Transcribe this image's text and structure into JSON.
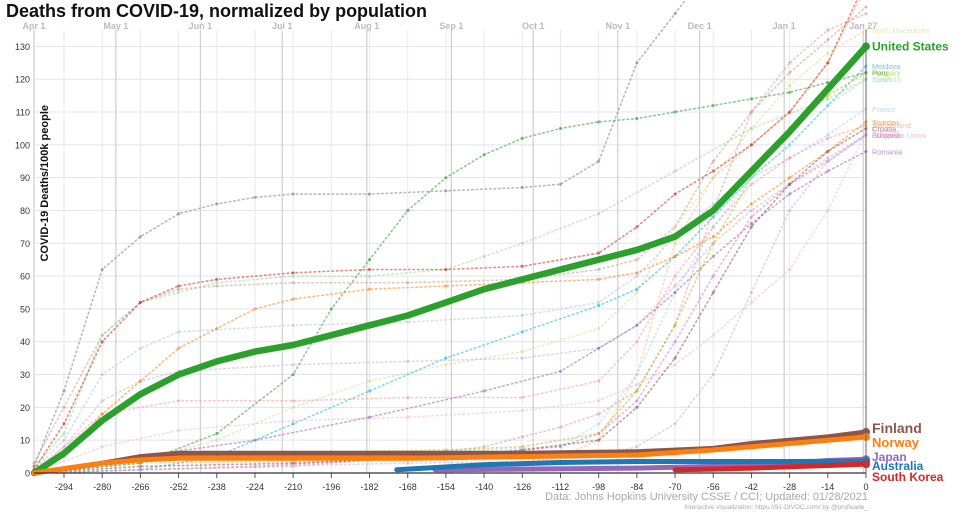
{
  "chart_data": {
    "type": "line",
    "title": "Deaths from COVID-19, normalized by population",
    "ylabel": "COVID-19 Deaths/100k people",
    "xlabel": "",
    "xlim": [
      -305,
      0
    ],
    "ylim": [
      0,
      135
    ],
    "x_ticks": [
      -294,
      -280,
      -266,
      -252,
      -238,
      -224,
      -210,
      -196,
      -182,
      -168,
      -154,
      -140,
      -126,
      -112,
      -98,
      -84,
      -70,
      -56,
      -42,
      -28,
      -14,
      0
    ],
    "y_ticks": [
      0,
      10,
      20,
      30,
      40,
      50,
      60,
      70,
      80,
      90,
      100,
      110,
      120,
      130
    ],
    "month_labels": [
      {
        "label": "Apr 1",
        "x": -305
      },
      {
        "label": "May 1",
        "x": -275
      },
      {
        "label": "Jun 1",
        "x": -244
      },
      {
        "label": "Jul 1",
        "x": -214
      },
      {
        "label": "Aug 1",
        "x": -183
      },
      {
        "label": "Sep 1",
        "x": -152
      },
      {
        "label": "Oct 1",
        "x": -122
      },
      {
        "label": "Nov 1",
        "x": -91
      },
      {
        "label": "Dec 1",
        "x": -61
      },
      {
        "label": "Jan 1",
        "x": -30
      },
      {
        "label": "Jan 27",
        "x": -1
      }
    ],
    "grid": true,
    "highlighted_series": [
      {
        "name": "United States",
        "color": "#2ca02c",
        "x": [
          -305,
          -294,
          -280,
          -266,
          -252,
          -238,
          -224,
          -210,
          -196,
          -182,
          -168,
          -154,
          -140,
          -126,
          -112,
          -98,
          -84,
          -70,
          -56,
          -42,
          -28,
          -14,
          0
        ],
        "y": [
          0,
          6,
          16,
          24,
          30,
          34,
          37,
          39,
          42,
          45,
          48,
          52,
          56,
          59,
          62,
          65,
          68,
          72,
          80,
          92,
          104,
          117,
          130
        ]
      },
      {
        "name": "Finland",
        "color": "#8c564b",
        "x": [
          -305,
          -280,
          -266,
          -252,
          -210,
          -168,
          -126,
          -84,
          -56,
          -42,
          -28,
          -14,
          0
        ],
        "y": [
          0,
          3,
          5,
          6,
          6,
          6,
          6,
          6.5,
          7.5,
          9,
          10,
          11,
          12.5
        ]
      },
      {
        "name": "Norway",
        "color": "#ff7f0e",
        "x": [
          -305,
          -280,
          -266,
          -252,
          -210,
          -168,
          -126,
          -84,
          -56,
          -42,
          -28,
          -14,
          0
        ],
        "y": [
          0,
          3,
          4,
          4.5,
          4.5,
          4.5,
          5,
          5.5,
          7,
          8,
          9,
          10,
          11
        ]
      },
      {
        "name": "Japan",
        "color": "#9467bd",
        "x": [
          -158,
          -126,
          -84,
          -56,
          -28,
          -14,
          0
        ],
        "y": [
          1,
          1.2,
          1.5,
          2,
          3,
          3.8,
          4.2
        ]
      },
      {
        "name": "Australia",
        "color": "#1f77b4",
        "x": [
          -172,
          -140,
          -112,
          -84,
          -56,
          -28,
          0
        ],
        "y": [
          1,
          2.5,
          3.2,
          3.5,
          3.5,
          3.5,
          3.6
        ]
      },
      {
        "name": "South Korea",
        "color": "#d62728",
        "x": [
          -70,
          -56,
          -42,
          -28,
          -14,
          0
        ],
        "y": [
          1,
          1.2,
          1.5,
          1.9,
          2.3,
          2.7
        ]
      }
    ],
    "faded_series": [
      {
        "name": "Czechia",
        "color": "#ffbb78",
        "x": [
          -305,
          -266,
          -210,
          -154,
          -112,
          -98,
          -84,
          -70,
          -56,
          -42,
          -28,
          -14,
          0
        ],
        "y": [
          0,
          3,
          3.5,
          4,
          5,
          10,
          30,
          70,
          90,
          100,
          110,
          125,
          148
        ]
      },
      {
        "name": "Italy",
        "color": "#c49c94",
        "x": [
          -305,
          -294,
          -280,
          -266,
          -252,
          -238,
          -210,
          -168,
          -126,
          -98,
          -84,
          -70,
          -56,
          -42,
          -28,
          -14,
          0
        ],
        "y": [
          3,
          20,
          42,
          52,
          56,
          57,
          58,
          58,
          59,
          62,
          65,
          75,
          95,
          110,
          122,
          132,
          142
        ]
      },
      {
        "name": "Bosnia and Herzegovina",
        "color": "#e7969c",
        "x": [
          -305,
          -266,
          -210,
          -168,
          -140,
          -126,
          -112,
          -98,
          -84,
          -70,
          -56,
          -42,
          -28,
          -14,
          0
        ],
        "y": [
          0,
          1,
          2,
          5,
          8,
          11,
          14,
          18,
          25,
          45,
          80,
          110,
          125,
          135,
          140
        ]
      },
      {
        "name": "North Macedonia",
        "color": "#dbdb8d",
        "x": [
          -305,
          -266,
          -238,
          -210,
          -182,
          -154,
          -126,
          -98,
          -84,
          -70,
          -56,
          -42,
          -28,
          -14,
          0
        ],
        "y": [
          0,
          4,
          10,
          20,
          28,
          33,
          37,
          44,
          55,
          75,
          90,
          105,
          118,
          128,
          135
        ]
      },
      {
        "name": "Moldova",
        "color": "#17becf",
        "x": [
          -305,
          -266,
          -238,
          -210,
          -182,
          -154,
          -126,
          -98,
          -84,
          -70,
          -56,
          -42,
          -28,
          -14,
          0
        ],
        "y": [
          0,
          1,
          5,
          15,
          25,
          35,
          43,
          51,
          56,
          66,
          78,
          90,
          100,
          112,
          124
        ]
      },
      {
        "name": "Hungary",
        "color": "#bcbd22",
        "x": [
          -305,
          -266,
          -238,
          -196,
          -154,
          -126,
          -98,
          -84,
          -70,
          -56,
          -42,
          -28,
          -14,
          0
        ],
        "y": [
          0,
          4,
          6,
          6.5,
          7,
          8,
          12,
          25,
          45,
          70,
          90,
          105,
          115,
          122
        ]
      },
      {
        "name": "Spain",
        "color": "#98df8a",
        "x": [
          -305,
          -294,
          -280,
          -266,
          -252,
          -238,
          -210,
          -182,
          -154,
          -140,
          -126,
          -98,
          -70,
          -42,
          -14,
          0
        ],
        "y": [
          2,
          12,
          42,
          52,
          55,
          58,
          60,
          60,
          62,
          66,
          70,
          79,
          92,
          105,
          114,
          120
        ]
      },
      {
        "name": "France",
        "color": "#aec7e8",
        "x": [
          -305,
          -294,
          -280,
          -266,
          -252,
          -210,
          -168,
          -126,
          -98,
          -84,
          -70,
          -56,
          -42,
          -28,
          -14,
          0
        ],
        "y": [
          1,
          10,
          30,
          38,
          43,
          45,
          46,
          48,
          52,
          60,
          72,
          82,
          90,
          96,
          103,
          111
        ]
      },
      {
        "name": "Switzerland",
        "color": "#ff9896",
        "x": [
          -305,
          -280,
          -252,
          -210,
          -168,
          -126,
          -98,
          -84,
          -70,
          -56,
          -42,
          -28,
          -14,
          0
        ],
        "y": [
          0,
          18,
          22,
          22,
          23,
          23,
          28,
          40,
          60,
          75,
          88,
          96,
          102,
          106
        ]
      },
      {
        "name": "Portugal",
        "color": "#f7b6d2",
        "x": [
          -305,
          -280,
          -252,
          -210,
          -168,
          -126,
          -98,
          -84,
          -70,
          -56,
          -42,
          -28,
          -14,
          0
        ],
        "y": [
          0,
          8,
          13,
          16,
          17,
          19,
          22,
          27,
          33,
          42,
          52,
          62,
          80,
          104
        ]
      },
      {
        "name": "European Union",
        "color": "#c5b0d5",
        "x": [
          -305,
          -294,
          -280,
          -266,
          -252,
          -210,
          -168,
          -126,
          -98,
          -84,
          -70,
          -56,
          -42,
          -28,
          -14,
          0
        ],
        "y": [
          1,
          8,
          22,
          28,
          31,
          33,
          34,
          35,
          38,
          45,
          57,
          70,
          80,
          88,
          96,
          103
        ]
      },
      {
        "name": "Slovenia",
        "color": "#9edae5",
        "x": [
          -305,
          -266,
          -224,
          -182,
          -140,
          -112,
          -98,
          -84,
          -70,
          -56,
          -42,
          -28,
          -14,
          0
        ],
        "y": [
          0,
          5,
          6,
          6,
          7,
          8,
          15,
          30,
          55,
          75,
          90,
          100,
          112,
          120
        ]
      },
      {
        "name": "Bulgaria",
        "color": "#e377c2",
        "x": [
          -305,
          -266,
          -224,
          -182,
          -140,
          -112,
          -98,
          -84,
          -70,
          -56,
          -42,
          -28,
          -14,
          0
        ],
        "y": [
          0,
          1,
          2,
          4,
          6,
          8,
          12,
          22,
          40,
          60,
          78,
          88,
          95,
          103
        ]
      },
      {
        "name": "Belgium",
        "color": "#7f7f7f",
        "x": [
          -305,
          -294,
          -280,
          -266,
          -252,
          -238,
          -224,
          -210,
          -182,
          -154,
          -126,
          -112,
          -98,
          -84,
          -70,
          -56,
          -42,
          -28,
          -14,
          0
        ],
        "y": [
          2,
          25,
          62,
          72,
          79,
          82,
          84,
          85,
          85,
          86,
          87,
          88,
          95,
          125,
          140,
          155,
          160,
          168,
          176,
          182
        ]
      },
      {
        "name": "Peru",
        "color": "#2ca02c",
        "x": [
          -305,
          -266,
          -238,
          -210,
          -196,
          -182,
          -168,
          -154,
          -140,
          -126,
          -112,
          -98,
          -84,
          -70,
          -56,
          -42,
          -28,
          -14,
          0
        ],
        "y": [
          0,
          3,
          12,
          30,
          50,
          65,
          80,
          90,
          97,
          102,
          105,
          107,
          108,
          110,
          112,
          114,
          116,
          119,
          122
        ]
      },
      {
        "name": "United Kingdom",
        "color": "#d62728",
        "x": [
          -305,
          -294,
          -280,
          -266,
          -252,
          -238,
          -210,
          -182,
          -154,
          -126,
          -98,
          -84,
          -70,
          -56,
          -42,
          -28,
          -14,
          0
        ],
        "y": [
          1,
          15,
          40,
          52,
          57,
          59,
          61,
          62,
          62,
          63,
          67,
          75,
          85,
          92,
          100,
          110,
          125,
          150
        ]
      },
      {
        "name": "Sweden",
        "color": "#ff7f0e",
        "x": [
          -305,
          -294,
          -280,
          -266,
          -252,
          -238,
          -224,
          -210,
          -182,
          -154,
          -126,
          -98,
          -84,
          -70,
          -56,
          -42,
          -28,
          -14,
          0
        ],
        "y": [
          0,
          5,
          18,
          28,
          38,
          44,
          50,
          53,
          56,
          57,
          58,
          59,
          61,
          66,
          72,
          82,
          90,
          98,
          107
        ]
      },
      {
        "name": "Romania",
        "color": "#9467bd",
        "x": [
          -305,
          -266,
          -224,
          -182,
          -140,
          -112,
          -98,
          -84,
          -70,
          -56,
          -42,
          -28,
          -14,
          0
        ],
        "y": [
          0,
          5,
          10,
          17,
          25,
          31,
          38,
          45,
          55,
          66,
          76,
          85,
          92,
          98
        ]
      },
      {
        "name": "Croatia",
        "color": "#8c564b",
        "x": [
          -305,
          -266,
          -210,
          -154,
          -126,
          -98,
          -84,
          -70,
          -56,
          -42,
          -28,
          -14,
          0
        ],
        "y": [
          0,
          2,
          3,
          5,
          7,
          10,
          20,
          35,
          55,
          75,
          88,
          98,
          105
        ]
      },
      {
        "name": "Lithuania",
        "color": "#c5b0d5",
        "x": [
          -305,
          -224,
          -168,
          -126,
          -98,
          -84,
          -70,
          -56,
          -42,
          -28,
          -14,
          0
        ],
        "y": [
          0,
          2,
          3,
          3.5,
          5,
          8,
          15,
          30,
          55,
          80,
          95,
          103
        ]
      }
    ]
  },
  "labels": {
    "source": "Data: Johns Hopkins University CSSE / CCI; Updated: 01/28/2021",
    "viz": "Interactive visualization: https://91-DIVOC.com/ by @profwade_"
  }
}
